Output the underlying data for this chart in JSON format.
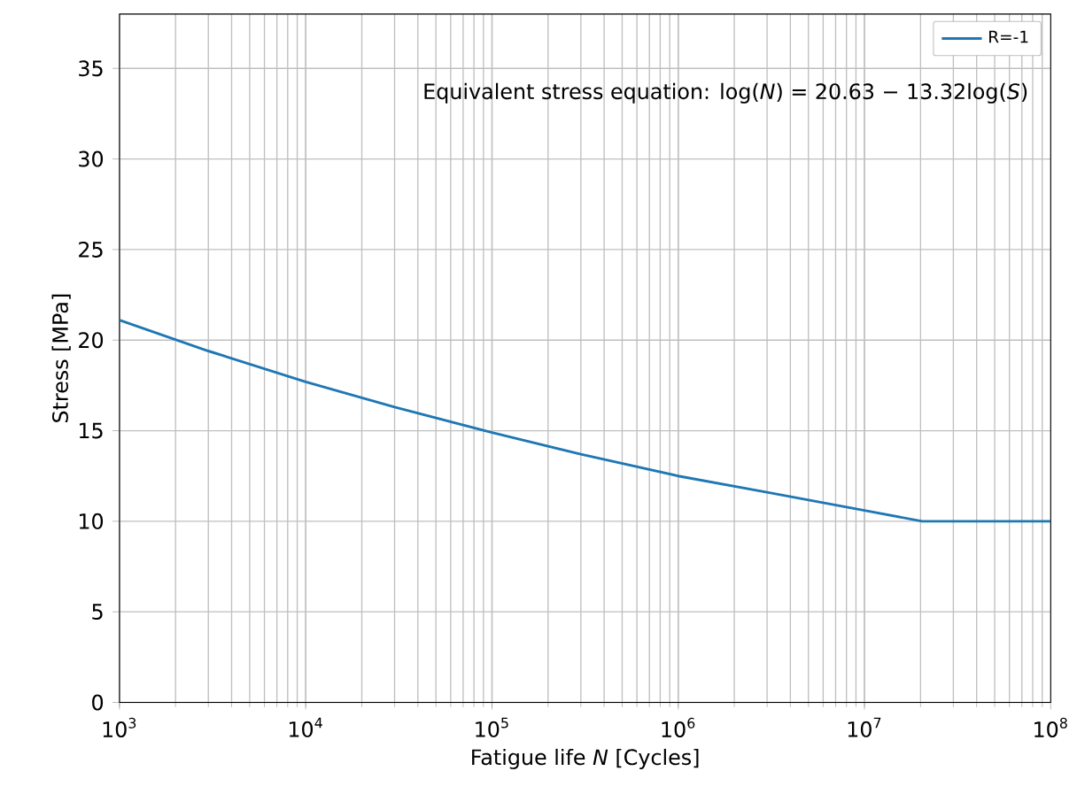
{
  "chart_data": {
    "type": "line",
    "xlabel": "Fatigue life *N* [Cycles]",
    "ylabel": "Stress [MPa]",
    "annotations": [
      "Equivalent stress equation: log(*N*) = 20.63 − 13.32log(*S*)"
    ],
    "x": [
      1000,
      3000,
      10000,
      30000,
      100000,
      300000,
      1000000,
      3000000,
      10000000,
      20400000,
      100000000
    ],
    "series": [
      {
        "name": "R=-1",
        "color": "#1f77b4",
        "values": [
          21.1,
          19.4,
          17.7,
          16.3,
          14.9,
          13.7,
          12.5,
          11.6,
          10.6,
          10.0,
          10.0
        ]
      }
    ],
    "xlim": [
      1000,
      100000000
    ],
    "xticks": [
      {
        "value": 1000,
        "label": "10$^{3}$"
      },
      {
        "value": 10000,
        "label": "10$^{4}$"
      },
      {
        "value": 100000,
        "label": "10$^{5}$"
      },
      {
        "value": 1000000,
        "label": "10$^{6}$"
      },
      {
        "value": 10000000,
        "label": "10$^{7}$"
      },
      {
        "value": 100000000,
        "label": "10$^{8}$"
      }
    ],
    "ylim": [
      0,
      38
    ],
    "yticks": [
      0,
      5,
      10,
      15,
      20,
      25,
      30,
      35
    ],
    "log": "x",
    "grid": true,
    "legend": "top right",
    "marker": "none",
    "line_style": "solid"
  }
}
